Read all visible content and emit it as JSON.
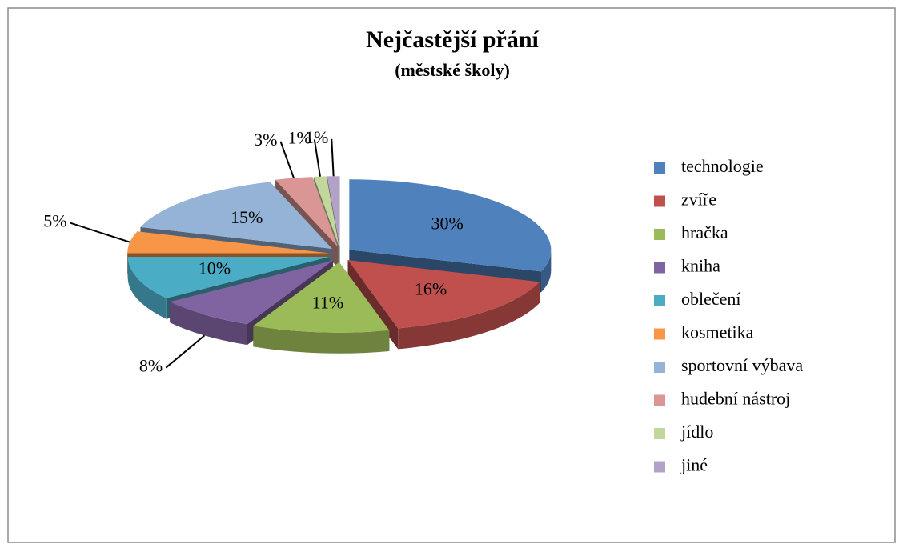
{
  "chart_data": {
    "type": "pie",
    "title": "Nejčastější přání",
    "subtitle": "(městské školy)",
    "categories": [
      "technologie",
      "zvíře",
      "hračka",
      "kniha",
      "oblečení",
      "kosmetika",
      "sportovní výbava",
      "hudební nástroj",
      "jídlo",
      "jiné"
    ],
    "values": [
      30,
      16,
      11,
      8,
      10,
      5,
      15,
      3,
      1,
      1
    ],
    "value_labels": [
      "30%",
      "16%",
      "11%",
      "8%",
      "10%",
      "5%",
      "15%",
      "3%",
      "1%",
      "1%"
    ],
    "colors": [
      "#4f81bd",
      "#c0504d",
      "#9bbb59",
      "#8064a2",
      "#4bacc6",
      "#f79646",
      "#95b3d7",
      "#d99694",
      "#c3d69b",
      "#b3a2c7"
    ],
    "legend": "right"
  }
}
